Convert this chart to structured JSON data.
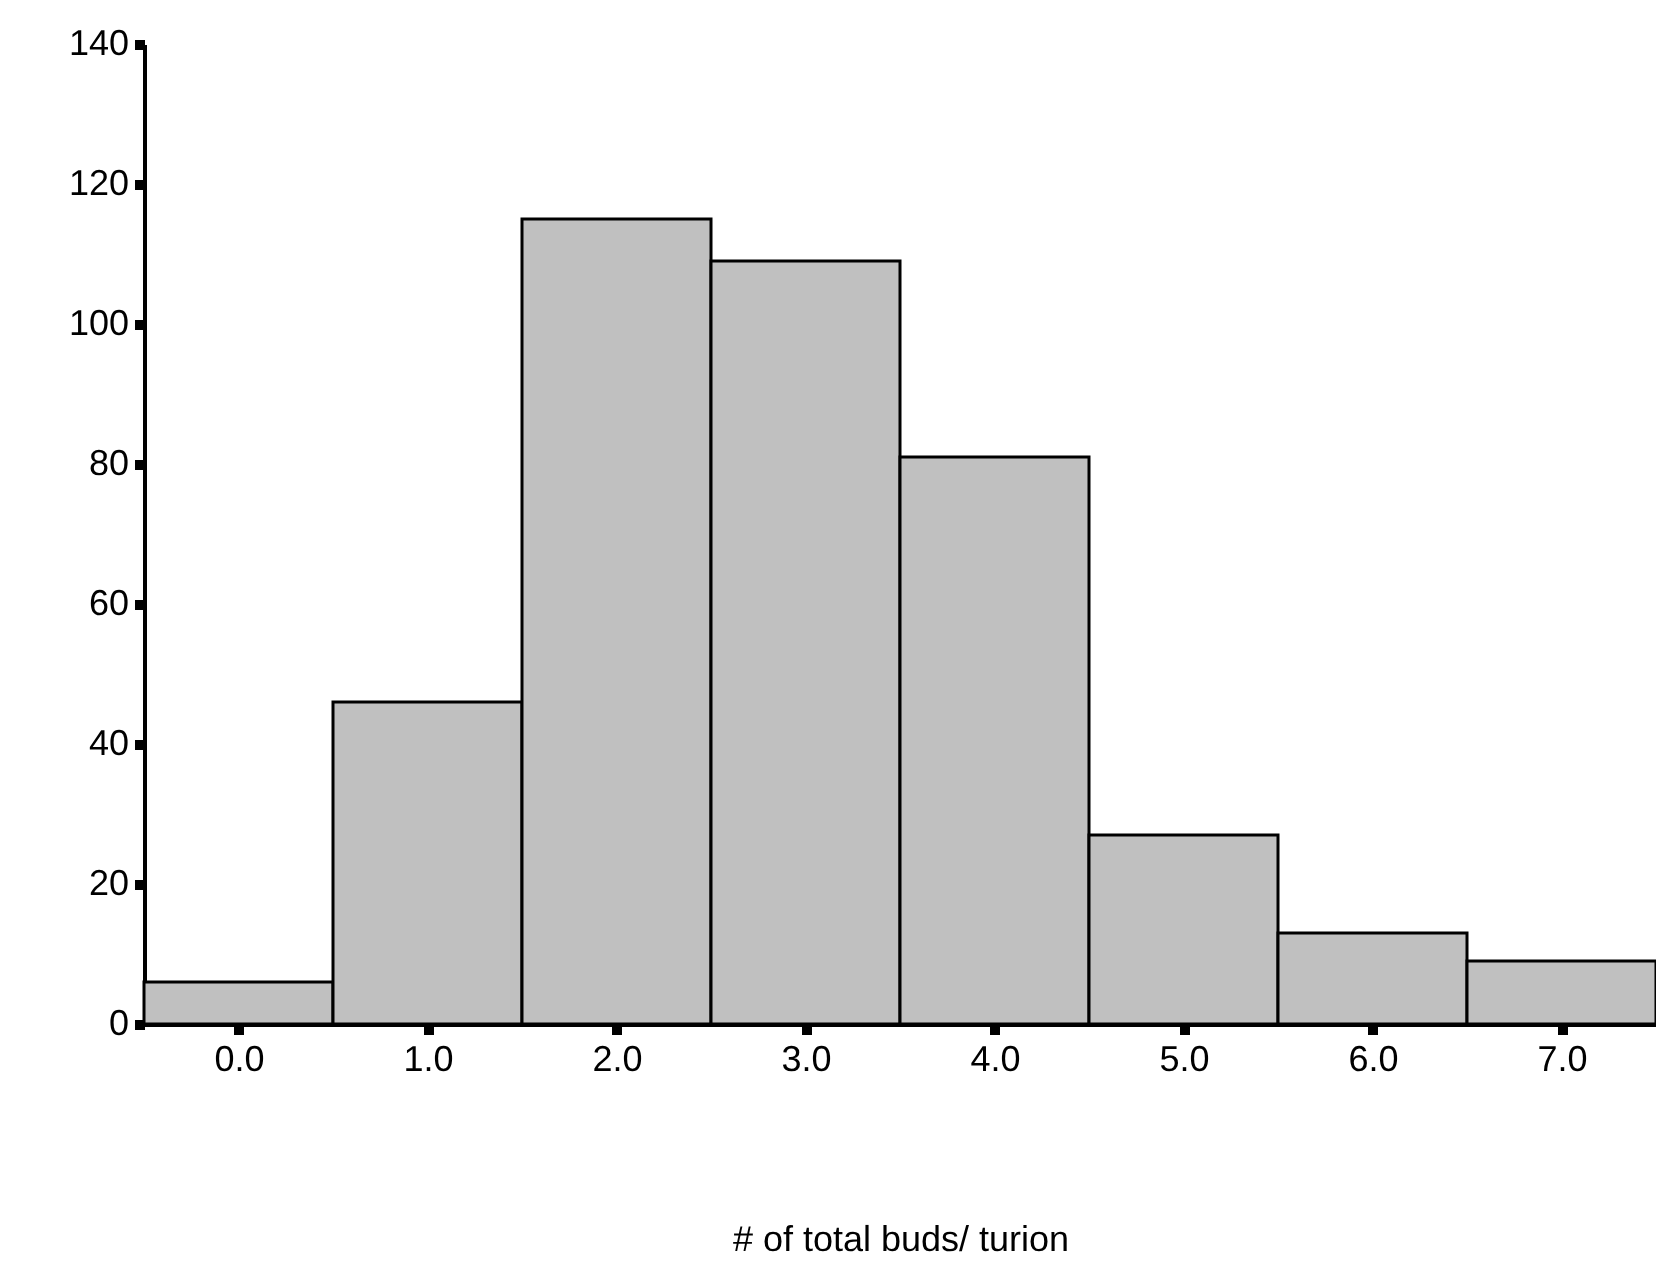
{
  "chart_data": {
    "type": "histogram",
    "xlabel": "# of total buds/ turion",
    "bins": [
      -0.5,
      0.5,
      1.5,
      2.5,
      3.5,
      4.5,
      5.5,
      6.5,
      7.5
    ],
    "values": [
      6,
      46,
      115,
      109,
      81,
      27,
      13,
      9
    ],
    "color": "#c0c0c0",
    "xlim": [
      -0.5,
      7.5
    ],
    "xticks": [
      {
        "value": 0,
        "label": "0.0"
      },
      {
        "value": 1,
        "label": "1.0"
      },
      {
        "value": 2,
        "label": "2.0"
      },
      {
        "value": 3,
        "label": "3.0"
      },
      {
        "value": 4,
        "label": "4.0"
      },
      {
        "value": 5,
        "label": "5.0"
      },
      {
        "value": 6,
        "label": "6.0"
      },
      {
        "value": 7,
        "label": "7.0"
      }
    ],
    "ylim": [
      0,
      140
    ],
    "yticks": [
      0,
      20,
      40,
      60,
      80,
      100,
      120,
      140
    ],
    "grid": false
  }
}
